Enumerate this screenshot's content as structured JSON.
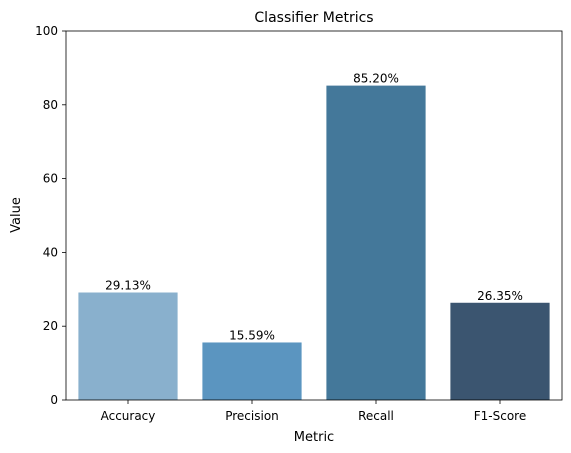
{
  "chart_data": {
    "type": "bar",
    "title": "Classifier Metrics",
    "xlabel": "Metric",
    "ylabel": "Value",
    "categories": [
      "Accuracy",
      "Precision",
      "Recall",
      "F1-Score"
    ],
    "values": [
      29.13,
      15.59,
      85.2,
      26.35
    ],
    "value_labels": [
      "29.13%",
      "15.59%",
      "85.20%",
      "26.35%"
    ],
    "ylim": [
      0,
      100
    ],
    "yticks": [
      0,
      20,
      40,
      60,
      80,
      100
    ],
    "ytick_labels": [
      "0",
      "20",
      "40",
      "60",
      "80",
      "100"
    ],
    "grid": false,
    "colors": [
      "#89b0cd",
      "#5b95c0",
      "#44789a",
      "#3b5570"
    ]
  }
}
